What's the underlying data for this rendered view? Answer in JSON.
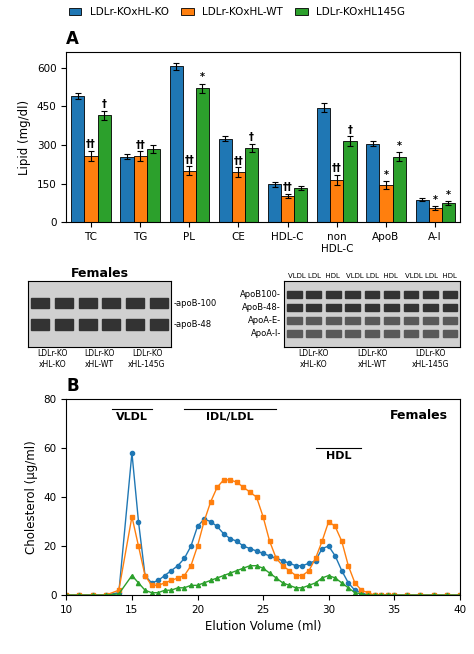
{
  "chart_data": [
    {
      "type": "bar",
      "title": "A",
      "categories": [
        "TC",
        "TG",
        "PL",
        "CE",
        "HDL-C",
        "non\nHDL-C",
        "ApoB",
        "A-I"
      ],
      "ylabel": "Lipid (mg/dl)",
      "ylim": [
        0,
        660
      ],
      "yticks": [
        0,
        150,
        300,
        450,
        600
      ],
      "series": [
        {
          "name": "LDLr-KOxHL-KO",
          "values": [
            490,
            255,
            605,
            325,
            147,
            445,
            305,
            87
          ],
          "errors": [
            12,
            10,
            12,
            10,
            8,
            18,
            10,
            6
          ]
        },
        {
          "name": "LDLr-KOxHL-WT",
          "values": [
            258,
            258,
            200,
            195,
            103,
            165,
            145,
            55
          ],
          "errors": [
            20,
            18,
            18,
            20,
            8,
            20,
            15,
            8
          ]
        },
        {
          "name": "LDLr-KOxHL145G",
          "values": [
            415,
            285,
            520,
            290,
            133,
            315,
            255,
            75
          ],
          "errors": [
            18,
            15,
            18,
            15,
            8,
            20,
            18,
            8
          ]
        }
      ],
      "legend": "upper center",
      "annotations": [
        {
          "text": "†",
          "category": "TC",
          "series": "LDLr-KOxHL145G"
        },
        {
          "text": "††",
          "category": "TC",
          "series": "LDLr-KOxHL-WT"
        },
        {
          "text": "††",
          "category": "TG",
          "series": "LDLr-KOxHL-WT"
        },
        {
          "text": "††",
          "category": "PL",
          "series": "LDLr-KOxHL-WT"
        },
        {
          "text": "*",
          "category": "PL",
          "series": "LDLr-KOxHL145G"
        },
        {
          "text": "††",
          "category": "CE",
          "series": "LDLr-KOxHL-WT"
        },
        {
          "text": "†",
          "category": "CE",
          "series": "LDLr-KOxHL145G"
        },
        {
          "text": "††",
          "category": "HDL-C",
          "series": "LDLr-KOxHL-WT"
        },
        {
          "text": "††",
          "category": "non\nHDL-C",
          "series": "LDLr-KOxHL-WT"
        },
        {
          "text": "†",
          "category": "non\nHDL-C",
          "series": "LDLr-KOxHL145G"
        },
        {
          "text": "*",
          "category": "ApoB",
          "series": "LDLr-KOxHL-WT"
        },
        {
          "text": "*",
          "category": "ApoB",
          "series": "LDLr-KOxHL145G"
        },
        {
          "text": "*",
          "category": "A-I",
          "series": "LDLr-KOxHL-WT"
        },
        {
          "text": "*",
          "category": "A-I",
          "series": "LDLr-KOxHL145G"
        }
      ]
    },
    {
      "type": "blot",
      "title": "Females",
      "band_labels": [
        "-apoB-100",
        "-apoB-48"
      ],
      "group_labels": [
        "LDLr-KO\nxHL-KO",
        "LDLr-KO\nxHL-WT",
        "LDLr-KO\nxHL-145G"
      ]
    },
    {
      "type": "blot",
      "column_headers": [
        "VLDL LDL  HDL",
        "VLDL LDL  HDL",
        "VLDL LDL  HDL"
      ],
      "band_labels": [
        "ApoB100-",
        "ApoB-48-",
        "ApoA-E-",
        "ApoA-I-"
      ],
      "group_labels": [
        "LDLr-KO\nxHL-KO",
        "LDLr-KO\nxHL-WT",
        "LDLr-KO\nxHL-145G"
      ]
    },
    {
      "type": "line",
      "title": "B",
      "x": [
        10,
        11,
        12,
        13,
        14,
        15,
        15.5,
        16,
        16.5,
        17,
        17.5,
        18,
        18.5,
        19,
        19.5,
        20,
        20.5,
        21,
        21.5,
        22,
        22.5,
        23,
        23.5,
        24,
        24.5,
        25,
        25.5,
        26,
        26.5,
        27,
        27.5,
        28,
        28.5,
        29,
        29.5,
        30,
        30.5,
        31,
        31.5,
        32,
        32.5,
        33,
        33.5,
        34,
        34.5,
        35,
        36,
        37,
        38,
        39,
        40
      ],
      "xlabel": "Elution Volume (ml)",
      "ylabel": "Cholesterol (μg/ml)",
      "xlim": [
        10,
        40
      ],
      "xticks": [
        10,
        15,
        20,
        25,
        30,
        35,
        40
      ],
      "ylim": [
        0,
        80
      ],
      "yticks": [
        0,
        20,
        40,
        60,
        80
      ],
      "series": [
        {
          "name": "LDLr-KOxHL-KO",
          "marker": "o",
          "values": [
            0,
            0,
            0,
            0,
            1,
            58,
            30,
            8,
            5,
            6,
            8,
            10,
            12,
            15,
            20,
            28,
            31,
            30,
            28,
            25,
            23,
            22,
            20,
            19,
            18,
            17,
            16,
            15,
            14,
            13,
            12,
            12,
            13,
            14,
            19,
            20,
            16,
            10,
            5,
            2,
            1,
            0,
            0,
            0,
            0,
            0,
            0,
            0,
            0,
            0,
            0
          ]
        },
        {
          "name": "LDLr-KOxHL-WT",
          "marker": "s",
          "values": [
            0,
            0,
            0,
            0,
            2,
            32,
            20,
            8,
            4,
            4,
            5,
            6,
            7,
            8,
            12,
            20,
            30,
            38,
            44,
            47,
            47,
            46,
            44,
            42,
            40,
            32,
            22,
            15,
            12,
            10,
            8,
            8,
            10,
            15,
            22,
            30,
            28,
            22,
            12,
            5,
            2,
            1,
            0,
            0,
            0,
            0,
            0,
            0,
            0,
            0,
            0
          ]
        },
        {
          "name": "LDLr-KOxHL145G",
          "marker": "^",
          "values": [
            0,
            0,
            0,
            0,
            0.5,
            8,
            5,
            2,
            1,
            1,
            2,
            2,
            3,
            3,
            4,
            4,
            5,
            6,
            7,
            8,
            9,
            10,
            11,
            12,
            12,
            11,
            9,
            7,
            5,
            4,
            3,
            3,
            4,
            5,
            7,
            8,
            7,
            5,
            3,
            1,
            0.5,
            0,
            0,
            0,
            0,
            0,
            0,
            0,
            0,
            0,
            0
          ]
        }
      ],
      "annotations": [
        {
          "text": "VLDL",
          "x": [
            13.5,
            16.5
          ],
          "y": 76
        },
        {
          "text": "IDL/LDL",
          "x": [
            19,
            26
          ],
          "y": 76
        },
        {
          "text": "HDL",
          "x": [
            29,
            32.5
          ],
          "y": 60
        },
        {
          "text": "Females"
        }
      ]
    }
  ]
}
